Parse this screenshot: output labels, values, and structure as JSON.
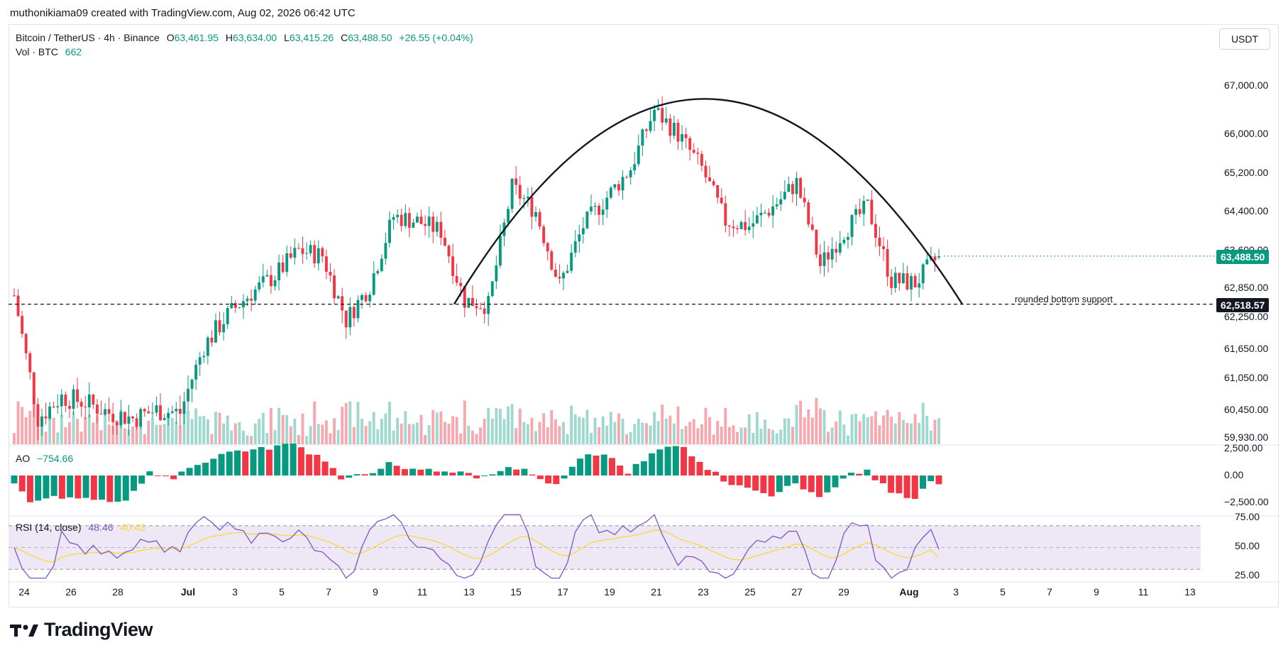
{
  "header": {
    "attribution": "muthonikiama09 created with TradingView.com, Aug 02, 2026 06:42 UTC"
  },
  "legend": {
    "symbol": "Bitcoin / TetherUS · 4h · Binance",
    "o_label": "O",
    "o_value": "63,461.95",
    "h_label": "H",
    "h_value": "63,634.00",
    "l_label": "L",
    "l_value": "63,415.26",
    "c_label": "C",
    "c_value": "63,488.50",
    "change": "+26.55 (+0.04%)",
    "vol_label": "Vol · BTC",
    "vol_value": "662",
    "ao_label": "AO",
    "ao_value": "−754.66",
    "rsi_label": "RSI (14, close)",
    "rsi_value": "48.46",
    "rsi_ma_value": "40.43"
  },
  "currency": "USDT",
  "price_axis": [
    "67,000.00",
    "66,000.00",
    "65,200.00",
    "64,400.00",
    "63,600.00",
    "62,850.00",
    "62,250.00",
    "61,650.00",
    "61,050.00",
    "60,450.00",
    "59,930.00"
  ],
  "ao_axis": [
    "2,500.00",
    "0.00",
    "−2,500.00"
  ],
  "rsi_axis": [
    "75.00",
    "50.00",
    "25.00"
  ],
  "badges": {
    "last_price": "63,488.50",
    "support_price": "62,518.57"
  },
  "annotation": {
    "support_text": "rounded bottom support"
  },
  "time_axis": [
    "24",
    "26",
    "28",
    "Jul",
    "3",
    "5",
    "7",
    "9",
    "11",
    "13",
    "15",
    "17",
    "19",
    "21",
    "23",
    "25",
    "27",
    "29",
    "Aug",
    "3",
    "5",
    "7",
    "9",
    "11",
    "13"
  ],
  "colors": {
    "up": "#089981",
    "down": "#f23645",
    "rsi": "#7e57c2",
    "rsi_ma": "#fdd835",
    "rsi_band": "#ede7f6"
  },
  "footer": {
    "brand": "TradingView"
  },
  "chart_data": {
    "type": "candlestick",
    "symbol": "BTCUSDT",
    "interval": "4h",
    "support_level": 62518.57,
    "last_close": 63488.5,
    "daily_closes": [
      {
        "date": "Jun 24",
        "close": 62700
      },
      {
        "date": "Jun 25",
        "close": 60300
      },
      {
        "date": "Jun 26",
        "close": 60700
      },
      {
        "date": "Jun 27",
        "close": 60600
      },
      {
        "date": "Jun 28",
        "close": 60400
      },
      {
        "date": "Jun 29",
        "close": 60300
      },
      {
        "date": "Jun 30",
        "close": 60450
      },
      {
        "date": "Jul 1",
        "close": 60400
      },
      {
        "date": "Jul 2",
        "close": 61700
      },
      {
        "date": "Jul 3",
        "close": 62300
      },
      {
        "date": "Jul 4",
        "close": 62750
      },
      {
        "date": "Jul 5",
        "close": 63100
      },
      {
        "date": "Jul 6",
        "close": 63600
      },
      {
        "date": "Jul 7",
        "close": 63500
      },
      {
        "date": "Jul 8",
        "close": 62200
      },
      {
        "date": "Jul 9",
        "close": 62900
      },
      {
        "date": "Jul 10",
        "close": 64300
      },
      {
        "date": "Jul 11",
        "close": 64200
      },
      {
        "date": "Jul 12",
        "close": 64000
      },
      {
        "date": "Jul 13",
        "close": 62600
      },
      {
        "date": "Jul 14",
        "close": 62500
      },
      {
        "date": "Jul 15",
        "close": 64900
      },
      {
        "date": "Jul 16",
        "close": 64400
      },
      {
        "date": "Jul 17",
        "close": 62900
      },
      {
        "date": "Jul 18",
        "close": 64100
      },
      {
        "date": "Jul 19",
        "close": 64700
      },
      {
        "date": "Jul 20",
        "close": 65300
      },
      {
        "date": "Jul 21",
        "close": 66500
      },
      {
        "date": "Jul 22",
        "close": 66000
      },
      {
        "date": "Jul 23",
        "close": 65300
      },
      {
        "date": "Jul 24",
        "close": 64200
      },
      {
        "date": "Jul 25",
        "close": 64100
      },
      {
        "date": "Jul 26",
        "close": 64500
      },
      {
        "date": "Jul 27",
        "close": 65000
      },
      {
        "date": "Jul 28",
        "close": 63300
      },
      {
        "date": "Jul 29",
        "close": 64000
      },
      {
        "date": "Jul 30",
        "close": 64500
      },
      {
        "date": "Jul 31",
        "close": 63000
      },
      {
        "date": "Aug 1",
        "close": 62950
      },
      {
        "date": "Aug 2",
        "close": 63488.5
      }
    ],
    "ao_range": [
      -2500,
      2500
    ],
    "rsi_levels": [
      75,
      50,
      25
    ],
    "rsi_last": 48.46,
    "rsi_ma_last": 40.43,
    "overlay": "arc (rounded top) drawn from Jul 12 to Aug 3"
  }
}
